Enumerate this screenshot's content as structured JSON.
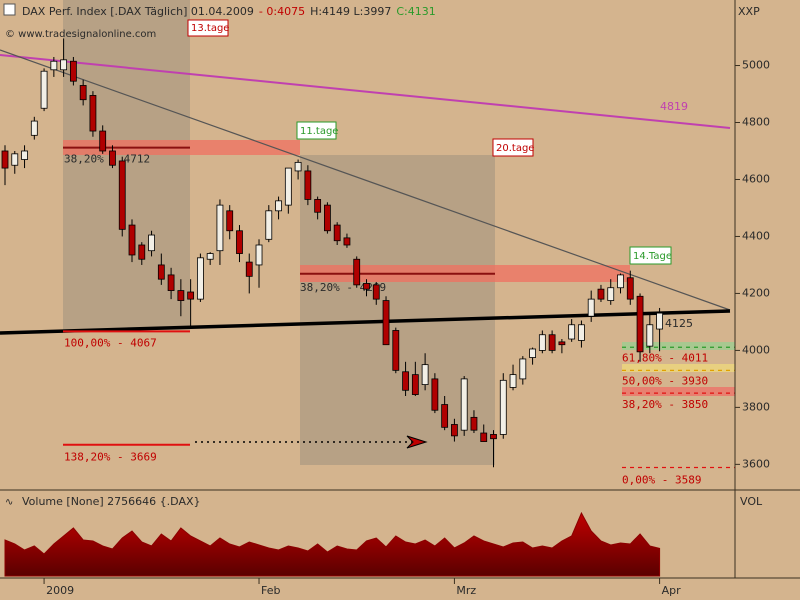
{
  "chart_data": {
    "type": "candlestick",
    "title_parts": [
      {
        "text": "DAX Perf. Index [.DAX  Täglich] 01.04.2009",
        "color": "#2a2a2a"
      },
      {
        "text": "- 0:4075",
        "color": "#c00000"
      },
      {
        "text": "H:4149 L:3997",
        "color": "#2a2a2a"
      },
      {
        "text": "C:4131",
        "color": "#2a9a2a"
      }
    ],
    "copyright": "© www.tradesignalonline.com",
    "y_axis_label": "XXP",
    "categories": [
      null,
      null,
      null,
      null,
      "2009",
      null,
      null,
      null,
      null,
      null,
      null,
      null,
      null,
      null,
      null,
      null,
      null,
      null,
      null,
      null,
      null,
      null,
      null,
      null,
      null,
      null,
      "Feb",
      null,
      null,
      null,
      null,
      null,
      null,
      null,
      null,
      null,
      null,
      null,
      null,
      null,
      null,
      null,
      null,
      null,
      null,
      null,
      "Mrz",
      null,
      null,
      null,
      null,
      null,
      null,
      null,
      null,
      null,
      null,
      null,
      null,
      null,
      null,
      null,
      null,
      null,
      null,
      null,
      null,
      "Apr"
    ],
    "open": [
      4700,
      4650,
      4670,
      4755,
      4850,
      4985,
      4985,
      5015,
      4930,
      4895,
      4770,
      4700,
      4665,
      4440,
      4370,
      4350,
      4300,
      4265,
      4210,
      4205,
      4180,
      4320,
      4350,
      4490,
      4420,
      4310,
      4300,
      4390,
      4490,
      4510,
      4630,
      4630,
      4530,
      4510,
      4440,
      4395,
      4320,
      4235,
      4230,
      4175,
      4070,
      3925,
      3915,
      3880,
      3900,
      3810,
      3740,
      3720,
      3765,
      3710,
      3705,
      3705,
      3870,
      3900,
      3975,
      4000,
      4055,
      4030,
      4040,
      4035,
      4120,
      4215,
      4175,
      4220,
      4255,
      4190,
      4015,
      4075
    ],
    "high": [
      4720,
      4700,
      4720,
      4820,
      4990,
      5030,
      5095,
      5030,
      4950,
      4910,
      4790,
      4720,
      4680,
      4460,
      4380,
      4420,
      4340,
      4290,
      4250,
      4250,
      4340,
      4345,
      4530,
      4510,
      4440,
      4340,
      4390,
      4510,
      4540,
      4640,
      4670,
      4650,
      4540,
      4520,
      4450,
      4410,
      4330,
      4250,
      4240,
      4190,
      4080,
      3960,
      3960,
      3990,
      3920,
      3840,
      3760,
      3910,
      3790,
      3740,
      3720,
      3920,
      3950,
      3980,
      4010,
      4070,
      4070,
      4040,
      4110,
      4105,
      4210,
      4230,
      4250,
      4270,
      4280,
      4200,
      4130,
      4149
    ],
    "low": [
      4580,
      4620,
      4640,
      4740,
      4840,
      4960,
      4960,
      4930,
      4860,
      4750,
      4690,
      4640,
      4400,
      4310,
      4300,
      4330,
      4230,
      4180,
      4120,
      4080,
      4170,
      4300,
      4300,
      4390,
      4310,
      4200,
      4220,
      4380,
      4460,
      4480,
      4600,
      4510,
      4460,
      4410,
      4370,
      4360,
      4220,
      4190,
      4160,
      4020,
      3920,
      3840,
      3840,
      3860,
      3780,
      3720,
      3680,
      3700,
      3710,
      3680,
      3590,
      3690,
      3860,
      3880,
      3950,
      3990,
      3990,
      3990,
      4030,
      4010,
      4100,
      4170,
      4160,
      4200,
      4160,
      3960,
      3990,
      3997
    ],
    "close": [
      4640,
      4690,
      4700,
      4805,
      4980,
      5015,
      5020,
      4945,
      4880,
      4770,
      4700,
      4650,
      4425,
      4335,
      4320,
      4405,
      4250,
      4210,
      4175,
      4180,
      4325,
      4340,
      4510,
      4420,
      4340,
      4260,
      4370,
      4490,
      4525,
      4640,
      4660,
      4530,
      4485,
      4420,
      4385,
      4370,
      4230,
      4215,
      4180,
      4020,
      3930,
      3860,
      3845,
      3950,
      3790,
      3730,
      3700,
      3900,
      3720,
      3680,
      3690,
      3895,
      3915,
      3970,
      4005,
      4055,
      4000,
      4020,
      4090,
      4090,
      4180,
      4180,
      4220,
      4265,
      4180,
      3995,
      4090,
      4131
    ],
    "up_color": "#f2efe6",
    "down_color": "#b00000",
    "ylim": [
      3510,
      5230
    ],
    "yticks": [
      3600,
      3800,
      4000,
      4200,
      4400,
      4600,
      4800,
      5000
    ],
    "levels": [
      {
        "label": "38,20% - 4712",
        "value": 4712,
        "color": "#8a1010",
        "label_color": "#2a2a2a",
        "dashed": false
      },
      {
        "label": "38,20% - 4269",
        "value": 4269,
        "color": "#8a1010",
        "label_color": "#2a2a2a",
        "dashed": false
      },
      {
        "label": "100,00% - 4067",
        "value": 4067,
        "color": "#e01010",
        "label_color": "#c00000",
        "dashed": false
      },
      {
        "label": "138,20% - 3669",
        "value": 3669,
        "color": "#e01010",
        "label_color": "#c00000",
        "dashed": false
      },
      {
        "label": "61,80% - 4011",
        "value": 4011,
        "color": "#2a9a2a",
        "label_color": "#c00000",
        "dashed": true
      },
      {
        "label": "50,00% - 3930",
        "value": 3930,
        "color": "#e0a000",
        "label_color": "#c00000",
        "dashed": true
      },
      {
        "label": "38,20% - 3850",
        "value": 3850,
        "color": "#e01010",
        "label_color": "#c00000",
        "dashed": true
      },
      {
        "label": "0,00% - 3589",
        "value": 3589,
        "color": "#e01010",
        "label_color": "#c00000",
        "dashed": true
      }
    ],
    "cycle_labels": [
      "13.tage",
      "11.tage",
      "20.tage",
      "14.Tage"
    ],
    "trend_label": "4819",
    "last_label": "4125",
    "volume_title": "Volume [None] 2756646 {.DAX}",
    "volume_axis_label": "VOL",
    "volume_color": "#8b0000",
    "volume": [
      3600000,
      3200000,
      2600000,
      3000000,
      2200000,
      3200000,
      4000000,
      4800000,
      3600000,
      3500000,
      3000000,
      2700000,
      3800000,
      4500000,
      3400000,
      3000000,
      4200000,
      3500000,
      4800000,
      4000000,
      3500000,
      3000000,
      3800000,
      3200000,
      2900000,
      3400000,
      3100000,
      2800000,
      2600000,
      3000000,
      2800000,
      2500000,
      3200000,
      2400000,
      3000000,
      2700000,
      2600000,
      3500000,
      3800000,
      2900000,
      4000000,
      3400000,
      3200000,
      3600000,
      3000000,
      3800000,
      2800000,
      3300000,
      4000000,
      3500000,
      3200000,
      2900000,
      3300000,
      3400000,
      2800000,
      3000000,
      2800000,
      3500000,
      4000000,
      6300000,
      4500000,
      3500000,
      3100000,
      3300000,
      3200000,
      4200000,
      3000000,
      2756646
    ],
    "volume_ylim": [
      0,
      6600000
    ]
  }
}
